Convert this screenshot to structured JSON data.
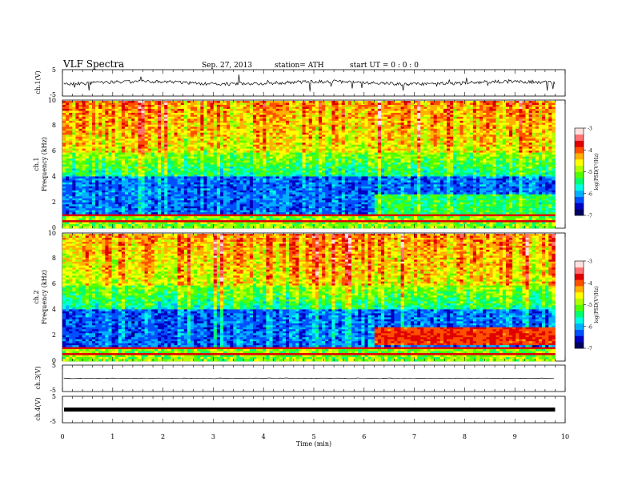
{
  "header": {
    "title": "VLF  Spectra",
    "date": "Sep. 27, 2013",
    "station": "station= ATH",
    "start": "start  UT =  0 : 0  : 0"
  },
  "colorbar": {
    "label": "log(PSD(V²/Hz)",
    "ticks": [
      "-3",
      "-4",
      "-5",
      "-6",
      "-7"
    ],
    "colors": [
      "#000060",
      "#0000c0",
      "#0050ff",
      "#00b0ff",
      "#00ffe0",
      "#00ff70",
      "#50ff00",
      "#b0ff00",
      "#ffff00",
      "#ffb000",
      "#ff5000",
      "#e00000",
      "#ff7070",
      "#ffe0e0"
    ]
  },
  "chart_data": [
    {
      "type": "line",
      "name": "ch1-waveform",
      "ylabel": "ch.1(V)",
      "ylim": [
        -5,
        5
      ],
      "yticks": [
        "5",
        "-5"
      ],
      "xlim": [
        0,
        10
      ],
      "x_end": 9.8,
      "baseline": 0,
      "color": "#000000"
    },
    {
      "type": "heatmap",
      "name": "ch1-spectrogram",
      "ylabel": "ch.1\nFrequency (kHz)",
      "ylim": [
        0,
        10
      ],
      "yticks": [
        "0",
        "2",
        "4",
        "6",
        "8",
        "10"
      ],
      "xlim": [
        0,
        10
      ],
      "x_end": 9.8,
      "zlim": [
        -7,
        -3
      ],
      "zlabel": "log(PSD(V²/Hz)"
    },
    {
      "type": "heatmap",
      "name": "ch2-spectrogram",
      "ylabel": "ch.2\nFrequency (kHz)",
      "ylim": [
        0,
        10
      ],
      "yticks": [
        "0",
        "2",
        "4",
        "6",
        "8",
        "10"
      ],
      "xlim": [
        0,
        10
      ],
      "x_end": 9.8,
      "zlim": [
        -7,
        -3
      ],
      "zlabel": "log(PSD(V²/Hz)"
    },
    {
      "type": "line",
      "name": "ch3-waveform",
      "ylabel": "ch.3(V)",
      "ylim": [
        -5,
        5
      ],
      "yticks": [
        "5",
        "-5"
      ],
      "xlim": [
        0,
        10
      ],
      "x_end": 9.8,
      "baseline": 0,
      "color": "#000000"
    },
    {
      "type": "line",
      "name": "ch4-waveform",
      "ylabel": "ch.4(V)",
      "ylim": [
        -5,
        5
      ],
      "yticks": [
        "5",
        "-5"
      ],
      "xlim": [
        0,
        10
      ],
      "x_end": 9.8,
      "baseline": 0,
      "color": "#000000"
    }
  ],
  "xaxis": {
    "label": "Time  (min)",
    "ticks": [
      "0",
      "1",
      "2",
      "3",
      "4",
      "5",
      "6",
      "7",
      "8",
      "9",
      "10"
    ]
  }
}
